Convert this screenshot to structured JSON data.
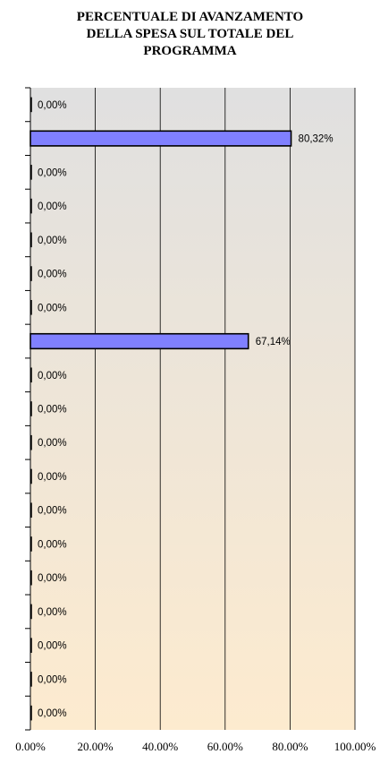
{
  "chart_data": {
    "type": "bar",
    "orientation": "horizontal",
    "title": "PERCENTUALE DI AVANZAMENTO\nDELLA SPESA SUL TOTALE DEL\nPROGRAMMA",
    "xlabel": "",
    "ylabel": "",
    "xlim": [
      0,
      100
    ],
    "x_ticks": [
      "0.00%",
      "20.00%",
      "40.00%",
      "60.00%",
      "80.00%",
      "100.00%"
    ],
    "grid": true,
    "legend": "none",
    "series": [
      {
        "values": [
          0,
          80.32,
          0,
          0,
          0,
          0,
          0,
          67.14,
          0,
          0,
          0,
          0,
          0,
          0,
          0,
          0,
          0,
          0,
          0
        ],
        "labels": [
          "0,00%",
          "80,32%",
          "0,00%",
          "0,00%",
          "0,00%",
          "0,00%",
          "0,00%",
          "67,14%",
          "0,00%",
          "0,00%",
          "0,00%",
          "0,00%",
          "0,00%",
          "0,00%",
          "0,00%",
          "0,00%",
          "0,00%",
          "0,00%",
          "0,00%"
        ]
      }
    ],
    "colors": {
      "bar_fill": "#8080ff",
      "bar_stroke": "#000000",
      "gridline": "#000000",
      "plot_gradient_top": "#e0e0e0",
      "plot_gradient_bottom": "#fdebcf"
    }
  }
}
